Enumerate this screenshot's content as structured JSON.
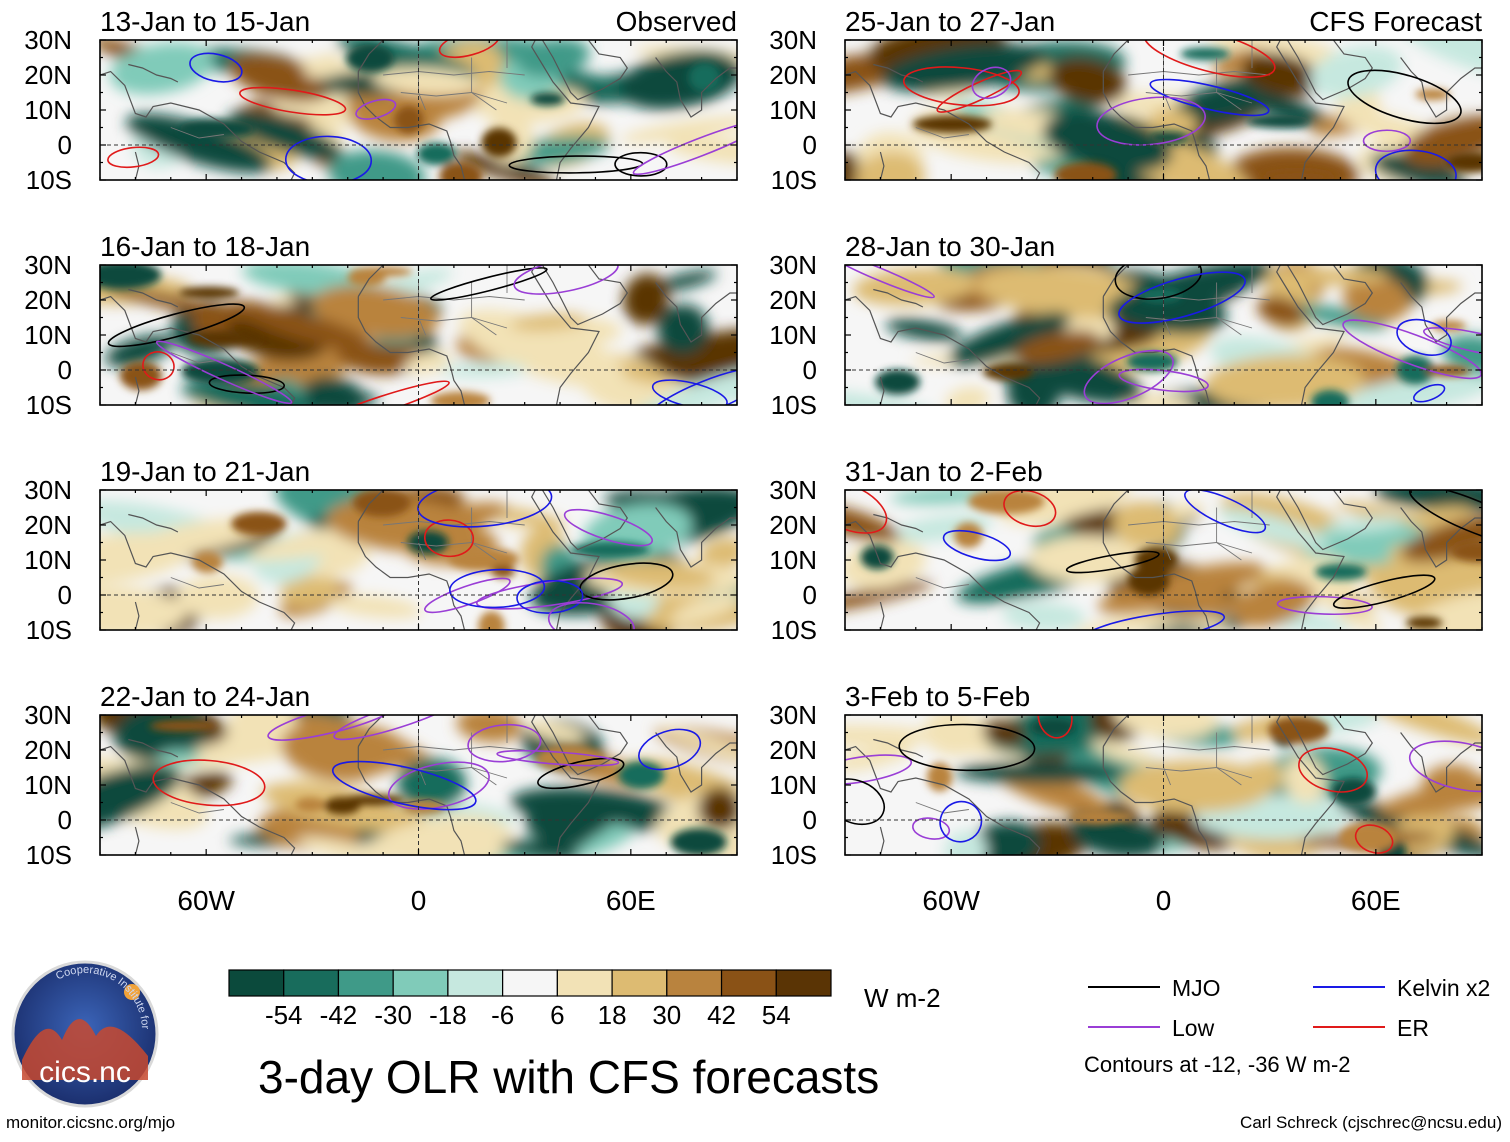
{
  "chart_data": {
    "type": "heatmap",
    "title": "3-day OLR with CFS forecasts",
    "variable": "OLR anomaly",
    "units": "W m-2",
    "lat_ticks": [
      "30N",
      "20N",
      "10N",
      "0",
      "10S"
    ],
    "lon_ticks": [
      "60W",
      "0",
      "60E"
    ],
    "lat_range": [
      -10,
      30
    ],
    "lon_range": [
      -90,
      90
    ],
    "columns": [
      {
        "label": "Observed",
        "side": "left"
      },
      {
        "label": "CFS Forecast",
        "side": "right"
      }
    ],
    "panels": [
      {
        "period": "13-Jan to 15-Jan",
        "source": "Observed"
      },
      {
        "period": "16-Jan to 18-Jan",
        "source": "Observed"
      },
      {
        "period": "19-Jan to 21-Jan",
        "source": "Observed"
      },
      {
        "period": "22-Jan to 24-Jan",
        "source": "Observed"
      },
      {
        "period": "25-Jan to 27-Jan",
        "source": "CFS Forecast"
      },
      {
        "period": "28-Jan to 30-Jan",
        "source": "CFS Forecast"
      },
      {
        "period": "31-Jan to 2-Feb",
        "source": "CFS Forecast"
      },
      {
        "period": "3-Feb to 5-Feb",
        "source": "CFS Forecast"
      }
    ],
    "colorbar": {
      "labels": [
        "-54",
        "-42",
        "-30",
        "-18",
        "-6",
        "6",
        "18",
        "30",
        "42",
        "54"
      ],
      "colors": [
        "#0b4a3c",
        "#186c5c",
        "#3f9a88",
        "#80cbb9",
        "#c6e8df",
        "#f6f6f6",
        "#f2e2b6",
        "#ddbb72",
        "#b9833e",
        "#8a5216",
        "#5a3405"
      ]
    },
    "legend": [
      {
        "name": "MJO",
        "color": "#000000"
      },
      {
        "name": "Kelvin x2",
        "color": "#1a1ae6"
      },
      {
        "name": "Low",
        "color": "#9a3ed6"
      },
      {
        "name": "ER",
        "color": "#e01a1a"
      }
    ],
    "contour_note": "Contours at -12, -36 W m-2"
  },
  "footer": {
    "url": "monitor.cicsnc.org/mjo",
    "credit": "Carl Schreck (cjschrec@ncsu.edu)"
  },
  "logo": {
    "name": "cics.nc",
    "ring_text": "Cooperative Institute for Climate and Satellites"
  }
}
